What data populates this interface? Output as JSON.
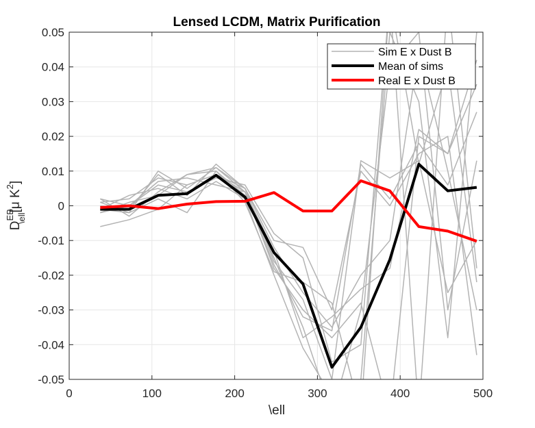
{
  "chart_data": {
    "type": "line",
    "title": "Lensed LCDM, Matrix Purification",
    "xlabel": "\\ell",
    "ylabel": {
      "base": "D",
      "sup": "EB",
      "sub": "\\ell",
      "units_pre": "[μ K",
      "units_sup": "2",
      "units_post": "]"
    },
    "xlim": [
      0,
      500
    ],
    "ylim": [
      -0.05,
      0.05
    ],
    "xticks": [
      0,
      100,
      200,
      300,
      400,
      500
    ],
    "xtick_labels": [
      "0",
      "100",
      "200",
      "300",
      "400",
      "500"
    ],
    "yticks": [
      -0.05,
      -0.04,
      -0.03,
      -0.02,
      -0.01,
      0,
      0.01,
      0.02,
      0.03,
      0.04,
      0.05
    ],
    "ytick_labels": [
      "-0.05",
      "-0.04",
      "-0.03",
      "-0.02",
      "-0.01",
      "0",
      "0.01",
      "0.02",
      "0.03",
      "0.04",
      "0.05"
    ],
    "grid": true,
    "legend_position": "top-right",
    "x": [
      37.5,
      72.5,
      107.5,
      142.5,
      177.5,
      212.5,
      247.5,
      282.5,
      317.5,
      352.5,
      387.5,
      422.5,
      457.5,
      492.5
    ],
    "series": [
      {
        "name": "Sim E x Dust B",
        "color": "#b3b3b3",
        "style": "thin",
        "runs": [
          [
            -0.001,
            -0.002,
            0.01,
            0.005,
            0.011,
            0.004,
            -0.018,
            -0.03,
            -0.038,
            -0.028,
            -0.06,
            0.02,
            0.015,
            0.035
          ],
          [
            0.001,
            0.002,
            0.008,
            0.006,
            0.009,
            0.005,
            -0.012,
            -0.025,
            -0.035,
            -0.02,
            -0.01,
            0.045,
            0.01,
            -0.03
          ],
          [
            -0.002,
            0.001,
            0.003,
            0.009,
            0.01,
            0.003,
            -0.015,
            -0.035,
            -0.06,
            -0.03,
            0.04,
            0.05,
            -0.03,
            0.013
          ],
          [
            0.002,
            0.0,
            0.006,
            0.004,
            0.008,
            0.006,
            -0.008,
            -0.015,
            -0.045,
            -0.04,
            0.06,
            -0.06,
            0.06,
            -0.018
          ],
          [
            -0.001,
            0.003,
            0.005,
            0.002,
            0.007,
            0.002,
            -0.02,
            -0.041,
            -0.055,
            -0.05,
            0.05,
            0.03,
            -0.038,
            0.05
          ],
          [
            0.0,
            -0.001,
            0.009,
            0.003,
            0.012,
            0.005,
            -0.01,
            -0.012,
            -0.03,
            0.01,
            0.0,
            0.015,
            0.02,
            -0.043
          ],
          [
            -0.006,
            -0.004,
            -0.001,
            0.006,
            0.009,
            0.004,
            -0.017,
            -0.032,
            -0.036,
            0.012,
            0.002,
            0.018,
            0.006,
            0.027
          ],
          [
            0.001,
            -0.002,
            0.002,
            -0.002,
            0.01,
            0.001,
            -0.019,
            -0.022,
            -0.028,
            -0.06,
            0.06,
            0.012,
            0.04,
            -0.022
          ],
          [
            -0.002,
            0.0,
            0.007,
            0.008,
            0.006,
            0.004,
            -0.013,
            -0.038,
            -0.032,
            -0.024,
            -0.018,
            0.022,
            0.015,
            0.042
          ],
          [
            0.002,
            -0.003,
            0.004,
            0.009,
            0.011,
            0.005,
            -0.016,
            -0.027,
            -0.05,
            0.013,
            0.008,
            0.013,
            -0.025,
            -0.01
          ]
        ]
      },
      {
        "name": "Mean of sims",
        "color": "#000000",
        "style": "thick",
        "values": [
          -0.001,
          -0.001,
          0.003,
          0.0035,
          0.0088,
          0.0025,
          -0.0135,
          -0.0225,
          -0.0465,
          -0.035,
          -0.0155,
          0.012,
          0.0043,
          0.0053
        ]
      },
      {
        "name": "Real E x Dust B",
        "color": "#ff0000",
        "style": "thick",
        "values": [
          -0.0005,
          0.0,
          -0.0008,
          0.0005,
          0.0012,
          0.0013,
          0.0038,
          -0.0015,
          -0.0015,
          0.0072,
          0.0043,
          -0.006,
          -0.0073,
          -0.0102
        ]
      }
    ]
  }
}
